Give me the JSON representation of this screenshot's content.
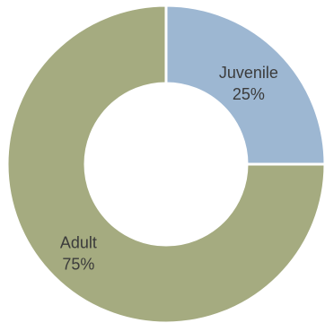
{
  "chart_data": {
    "type": "pie",
    "subtype": "donut",
    "title": "",
    "categories": [
      "Juvenile",
      "Adult"
    ],
    "values": [
      25,
      75
    ],
    "value_labels": [
      "25%",
      "75%"
    ],
    "colors": [
      "#9db7d2",
      "#a5ab80"
    ],
    "separator_color": "#ffffff",
    "legend": "none"
  }
}
